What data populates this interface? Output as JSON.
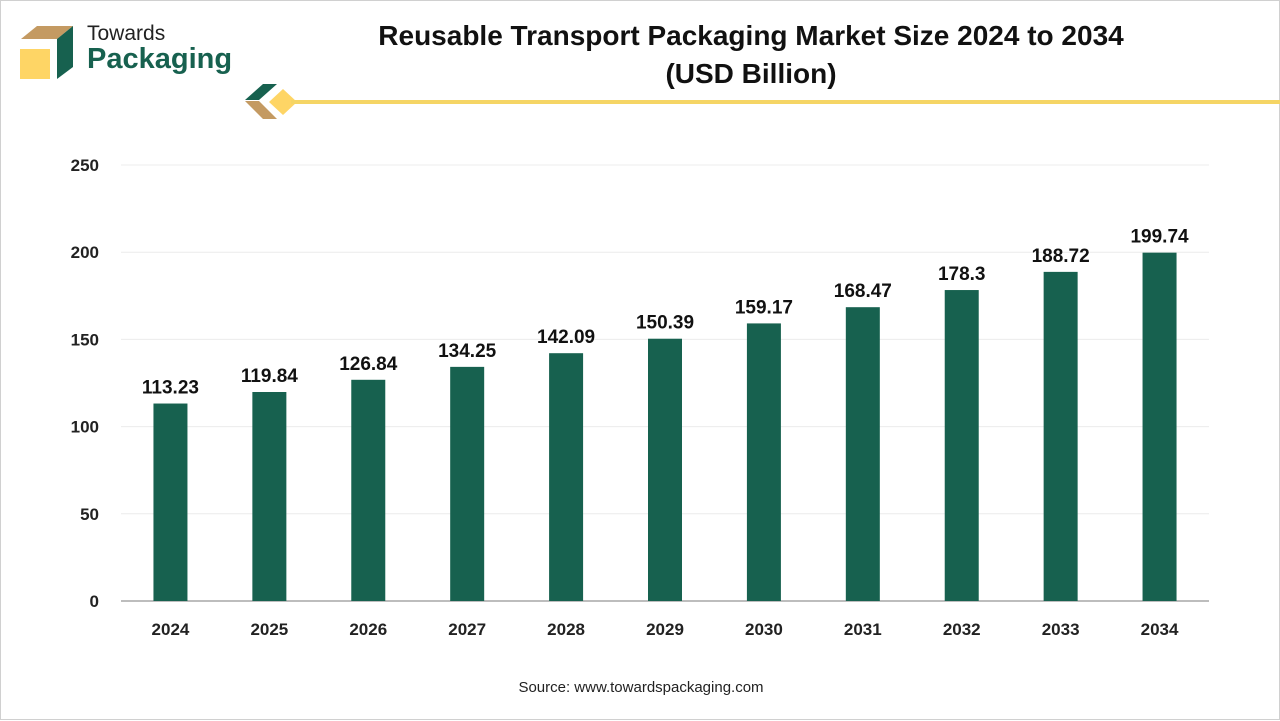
{
  "brand": {
    "line1": "Towards",
    "line2": "Packaging"
  },
  "colors": {
    "bar": "#17614f",
    "accent": "#f5d565",
    "tan": "#c49a62"
  },
  "source": "Source: www.towardspackaging.com",
  "chart_data": {
    "type": "bar",
    "title": "Reusable Transport Packaging Market Size 2024 to 2034",
    "subtitle": "(USD Billion)",
    "categories": [
      "2024",
      "2025",
      "2026",
      "2027",
      "2028",
      "2029",
      "2030",
      "2031",
      "2032",
      "2033",
      "2034"
    ],
    "values": [
      113.23,
      119.84,
      126.84,
      134.25,
      142.09,
      150.39,
      159.17,
      168.47,
      178.3,
      188.72,
      199.74
    ],
    "value_labels": [
      "113.23",
      "119.84",
      "126.84",
      "134.25",
      "142.09",
      "150.39",
      "159.17",
      "168.47",
      "178.3",
      "188.72",
      "199.74"
    ],
    "ylim": [
      0,
      250
    ],
    "yticks": [
      "0",
      "50",
      "100",
      "150",
      "200",
      "250"
    ],
    "grid": true,
    "xlabel": "",
    "ylabel": ""
  }
}
